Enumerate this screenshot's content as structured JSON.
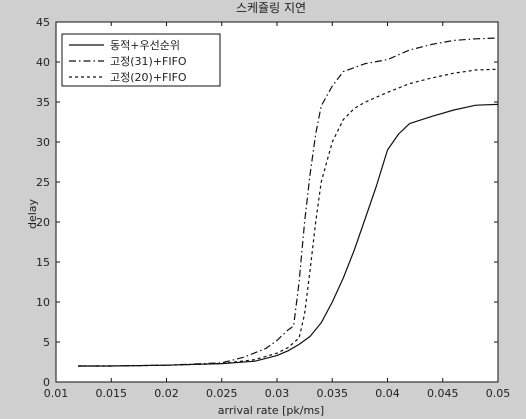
{
  "chart_data": {
    "type": "line",
    "title": "스케쥴링 지연",
    "xlabel": "arrival rate [pk/ms]",
    "ylabel": "delay",
    "xlim": [
      0.01,
      0.05
    ],
    "ylim": [
      0,
      45
    ],
    "xticks": [
      0.01,
      0.015,
      0.02,
      0.025,
      0.03,
      0.035,
      0.04,
      0.045,
      0.05
    ],
    "xtick_labels": [
      "0.01",
      "0.015",
      "0.02",
      "0.025",
      "0.03",
      "0.035",
      "0.04",
      "0.045",
      "0.05"
    ],
    "yticks": [
      0,
      5,
      10,
      15,
      20,
      25,
      30,
      35,
      40,
      45
    ],
    "ytick_labels": [
      "0",
      "5",
      "10",
      "15",
      "20",
      "25",
      "30",
      "35",
      "40",
      "45"
    ],
    "grid": false,
    "legend_position": "top-left",
    "series": [
      {
        "name": "동적+우선순위",
        "style": "solid",
        "color": "#111111",
        "x": [
          0.012,
          0.015,
          0.02,
          0.025,
          0.028,
          0.03,
          0.031,
          0.032,
          0.033,
          0.034,
          0.035,
          0.036,
          0.037,
          0.038,
          0.039,
          0.04,
          0.041,
          0.042,
          0.044,
          0.046,
          0.048,
          0.05
        ],
        "y": [
          2.0,
          2.0,
          2.1,
          2.3,
          2.6,
          3.3,
          3.9,
          4.7,
          5.7,
          7.4,
          10.0,
          13.0,
          16.5,
          20.5,
          24.5,
          29.0,
          31.0,
          32.3,
          33.2,
          34.0,
          34.6,
          34.7
        ]
      },
      {
        "name": "고정(31)+FIFO",
        "style": "dashdot",
        "color": "#111111",
        "x": [
          0.012,
          0.015,
          0.02,
          0.025,
          0.027,
          0.029,
          0.03,
          0.031,
          0.0315,
          0.032,
          0.0325,
          0.033,
          0.0335,
          0.034,
          0.035,
          0.036,
          0.038,
          0.04,
          0.042,
          0.044,
          0.046,
          0.048,
          0.05
        ],
        "y": [
          2.0,
          2.0,
          2.1,
          2.4,
          3.1,
          4.2,
          5.2,
          6.5,
          7.0,
          12.5,
          20.0,
          26.0,
          31.0,
          34.5,
          37.0,
          38.8,
          39.8,
          40.3,
          41.5,
          42.2,
          42.7,
          42.9,
          43.0
        ]
      },
      {
        "name": "고정(20)+FIFO",
        "style": "dashed",
        "color": "#111111",
        "x": [
          0.012,
          0.015,
          0.02,
          0.025,
          0.028,
          0.03,
          0.031,
          0.032,
          0.0325,
          0.033,
          0.0335,
          0.034,
          0.035,
          0.036,
          0.037,
          0.038,
          0.039,
          0.04,
          0.042,
          0.044,
          0.046,
          0.048,
          0.05
        ],
        "y": [
          2.0,
          2.0,
          2.1,
          2.3,
          2.8,
          3.6,
          4.3,
          5.5,
          8.5,
          14.0,
          20.0,
          25.0,
          30.0,
          32.8,
          34.2,
          35.0,
          35.6,
          36.2,
          37.3,
          38.0,
          38.6,
          39.0,
          39.1
        ]
      }
    ]
  }
}
